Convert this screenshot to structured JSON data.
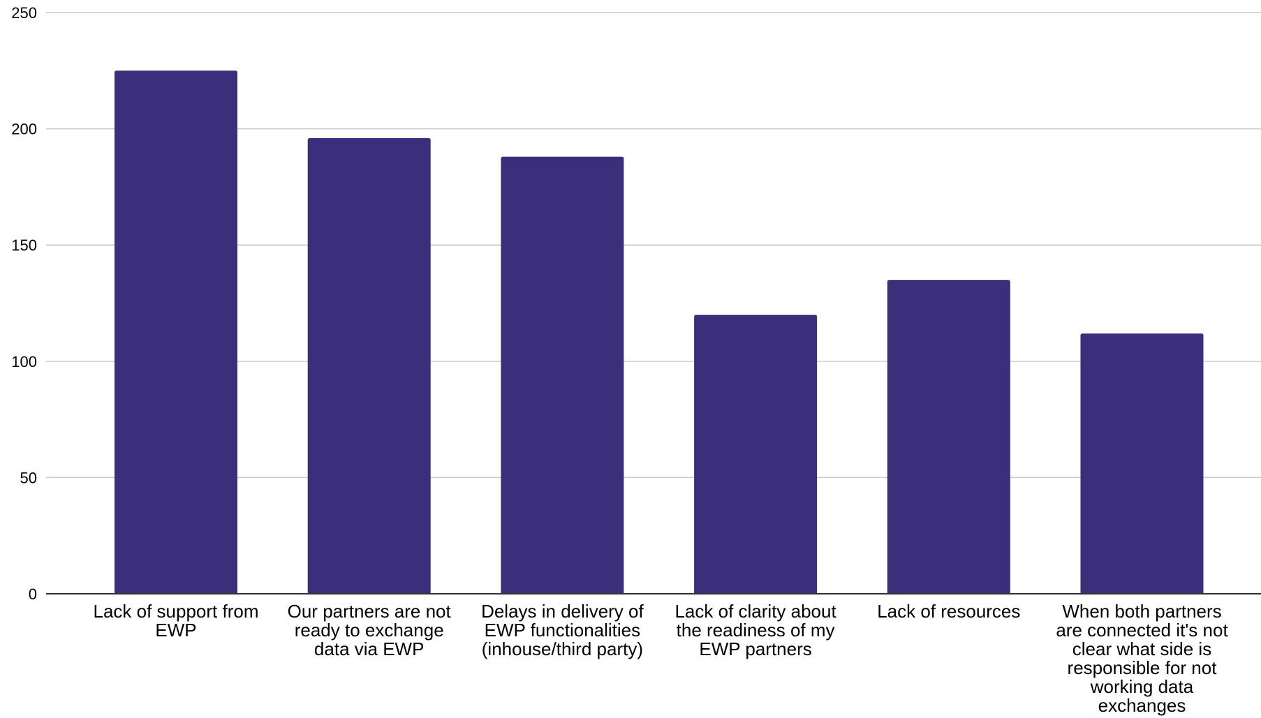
{
  "chart_data": {
    "type": "bar",
    "categories": [
      "Lack of support from EWP",
      "Our partners are not ready to exchange data via EWP",
      "Delays in delivery of EWP functionalities (inhouse/third party)",
      "Lack of clarity about the readiness of my EWP partners",
      "Lack of resources",
      "When both partners are connected it's not clear what side is responsible for not working data exchanges"
    ],
    "values": [
      225,
      196,
      188,
      120,
      135,
      112
    ],
    "ylim": [
      0,
      250
    ],
    "yticks": [
      "0",
      "50",
      "100",
      "150",
      "200",
      "250"
    ],
    "title": "",
    "xlabel": "",
    "ylabel": "",
    "grid": true,
    "legend": "none",
    "bar_color": "#3b2e7a",
    "grid_color": "#c8c8c8",
    "axis_color": "#333333"
  }
}
